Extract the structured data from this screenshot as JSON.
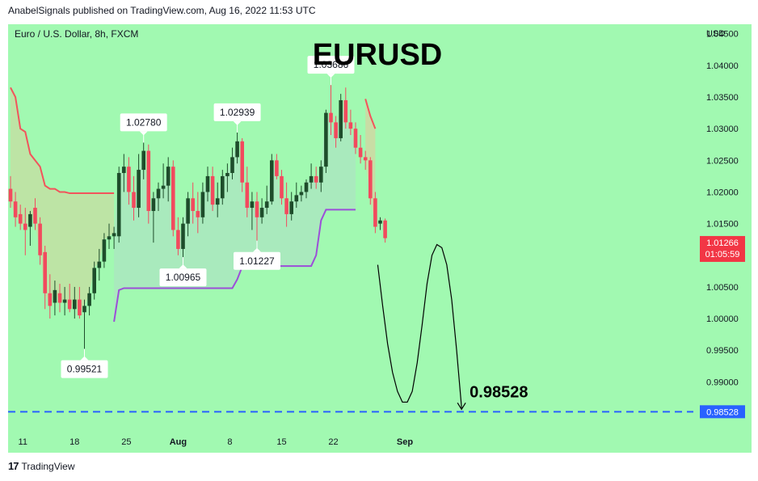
{
  "header": {
    "publish_line": "AnabelSignals published on TradingView.com, Aug 16, 2022 11:53 UTC"
  },
  "footer": {
    "brand": "TradingView",
    "logo_glyph": "17"
  },
  "colors": {
    "background": "#a1f9b1",
    "bull": "#1e4d2b",
    "bear": "#f24a5e",
    "resistance_line": "#f2545b",
    "support_line": "#9c4fd8",
    "target_line": "#2962ff",
    "last_price_label": "#f23645"
  },
  "chart_data": {
    "type": "candlestick",
    "title": "EURUSD",
    "symbol_label": "Euro / U.S. Dollar, 8h, FXCM",
    "currency": "USD",
    "ylim": [
      0.982,
      1.0465
    ],
    "y_ticks": [
      "1.04500",
      "1.04000",
      "1.03500",
      "1.03000",
      "1.02500",
      "1.02000",
      "1.01500",
      "1.01000",
      "1.00500",
      "1.00000",
      "0.99500",
      "0.99000"
    ],
    "x_ticks": [
      {
        "label": "11",
        "i": 2.5
      },
      {
        "label": "18",
        "i": 13
      },
      {
        "label": "25",
        "i": 23.5
      },
      {
        "label": "Aug",
        "i": 34
      },
      {
        "label": "8",
        "i": 44.5
      },
      {
        "label": "15",
        "i": 55
      },
      {
        "label": "22",
        "i": 65.5
      },
      {
        "label": "Sep",
        "i": 80
      }
    ],
    "candles": [
      {
        "o": 1.0205,
        "h": 1.0225,
        "l": 1.0175,
        "c": 1.0185
      },
      {
        "o": 1.0185,
        "h": 1.02,
        "l": 1.0145,
        "c": 1.016
      },
      {
        "o": 1.0165,
        "h": 1.018,
        "l": 1.014,
        "c": 1.015
      },
      {
        "o": 1.015,
        "h": 1.0175,
        "l": 1.01,
        "c": 1.014
      },
      {
        "o": 1.0145,
        "h": 1.017,
        "l": 1.0115,
        "c": 1.0165
      },
      {
        "o": 1.0175,
        "h": 1.019,
        "l": 1.014,
        "c": 1.015
      },
      {
        "o": 1.015,
        "h": 1.016,
        "l": 1.0085,
        "c": 1.01
      },
      {
        "o": 1.0105,
        "h": 1.0115,
        "l": 1.0015,
        "c": 1.004
      },
      {
        "o": 1.004,
        "h": 1.007,
        "l": 1.0,
        "c": 1.002
      },
      {
        "o": 1.0025,
        "h": 1.006,
        "l": 1.0005,
        "c": 1.0045
      },
      {
        "o": 1.004,
        "h": 1.0055,
        "l": 1.001,
        "c": 1.0025
      },
      {
        "o": 1.0025,
        "h": 1.005,
        "l": 1.0005,
        "c": 1.003
      },
      {
        "o": 1.003,
        "h": 1.0055,
        "l": 1.001,
        "c": 1.0015
      },
      {
        "o": 1.0015,
        "h": 1.005,
        "l": 1.0,
        "c": 1.003
      },
      {
        "o": 1.003,
        "h": 1.005,
        "l": 1.0,
        "c": 1.0005
      },
      {
        "o": 1.001,
        "h": 1.003,
        "l": 0.9952,
        "c": 1.002
      },
      {
        "o": 1.002,
        "h": 1.005,
        "l": 1.0005,
        "c": 1.004
      },
      {
        "o": 1.004,
        "h": 1.009,
        "l": 1.003,
        "c": 1.008
      },
      {
        "o": 1.008,
        "h": 1.011,
        "l": 1.006,
        "c": 1.009
      },
      {
        "o": 1.009,
        "h": 1.0135,
        "l": 1.008,
        "c": 1.0125
      },
      {
        "o": 1.0125,
        "h": 1.015,
        "l": 1.011,
        "c": 1.013
      },
      {
        "o": 1.013,
        "h": 1.0145,
        "l": 1.011,
        "c": 1.0135
      },
      {
        "o": 1.013,
        "h": 1.024,
        "l": 1.012,
        "c": 1.023
      },
      {
        "o": 1.023,
        "h": 1.026,
        "l": 1.02,
        "c": 1.024
      },
      {
        "o": 1.024,
        "h": 1.0255,
        "l": 1.018,
        "c": 1.02
      },
      {
        "o": 1.02,
        "h": 1.0225,
        "l": 1.0155,
        "c": 1.0175
      },
      {
        "o": 1.0175,
        "h": 1.026,
        "l": 1.016,
        "c": 1.0235
      },
      {
        "o": 1.0235,
        "h": 1.0278,
        "l": 1.022,
        "c": 1.0265
      },
      {
        "o": 1.0265,
        "h": 1.0275,
        "l": 1.015,
        "c": 1.017
      },
      {
        "o": 1.017,
        "h": 1.02,
        "l": 1.012,
        "c": 1.019
      },
      {
        "o": 1.019,
        "h": 1.0215,
        "l": 1.017,
        "c": 1.0205
      },
      {
        "o": 1.0205,
        "h": 1.0245,
        "l": 1.019,
        "c": 1.021
      },
      {
        "o": 1.021,
        "h": 1.0255,
        "l": 1.0185,
        "c": 1.024
      },
      {
        "o": 1.024,
        "h": 1.025,
        "l": 1.013,
        "c": 1.014
      },
      {
        "o": 1.014,
        "h": 1.016,
        "l": 1.01,
        "c": 1.011
      },
      {
        "o": 1.011,
        "h": 1.016,
        "l": 1.0097,
        "c": 1.015
      },
      {
        "o": 1.015,
        "h": 1.02,
        "l": 1.013,
        "c": 1.019
      },
      {
        "o": 1.019,
        "h": 1.0215,
        "l": 1.015,
        "c": 1.017
      },
      {
        "o": 1.017,
        "h": 1.02,
        "l": 1.0135,
        "c": 1.016
      },
      {
        "o": 1.016,
        "h": 1.0215,
        "l": 1.015,
        "c": 1.02
      },
      {
        "o": 1.02,
        "h": 1.024,
        "l": 1.0185,
        "c": 1.0225
      },
      {
        "o": 1.0225,
        "h": 1.024,
        "l": 1.017,
        "c": 1.018
      },
      {
        "o": 1.018,
        "h": 1.0215,
        "l": 1.016,
        "c": 1.019
      },
      {
        "o": 1.019,
        "h": 1.0235,
        "l": 1.018,
        "c": 1.0225
      },
      {
        "o": 1.0225,
        "h": 1.0245,
        "l": 1.02,
        "c": 1.023
      },
      {
        "o": 1.023,
        "h": 1.027,
        "l": 1.022,
        "c": 1.0255
      },
      {
        "o": 1.0255,
        "h": 1.0294,
        "l": 1.0245,
        "c": 1.028
      },
      {
        "o": 1.028,
        "h": 1.0285,
        "l": 1.02,
        "c": 1.0215
      },
      {
        "o": 1.0215,
        "h": 1.024,
        "l": 1.016,
        "c": 1.0175
      },
      {
        "o": 1.0175,
        "h": 1.02,
        "l": 1.014,
        "c": 1.0185
      },
      {
        "o": 1.0185,
        "h": 1.02,
        "l": 1.0123,
        "c": 1.016
      },
      {
        "o": 1.016,
        "h": 1.019,
        "l": 1.015,
        "c": 1.0175
      },
      {
        "o": 1.0175,
        "h": 1.021,
        "l": 1.0165,
        "c": 1.0185
      },
      {
        "o": 1.0185,
        "h": 1.026,
        "l": 1.018,
        "c": 1.025
      },
      {
        "o": 1.025,
        "h": 1.026,
        "l": 1.022,
        "c": 1.0225
      },
      {
        "o": 1.0225,
        "h": 1.0235,
        "l": 1.018,
        "c": 1.019
      },
      {
        "o": 1.019,
        "h": 1.0215,
        "l": 1.0145,
        "c": 1.0165
      },
      {
        "o": 1.0165,
        "h": 1.02,
        "l": 1.0155,
        "c": 1.0185
      },
      {
        "o": 1.0185,
        "h": 1.0215,
        "l": 1.0175,
        "c": 1.0195
      },
      {
        "o": 1.0195,
        "h": 1.021,
        "l": 1.0185,
        "c": 1.02
      },
      {
        "o": 1.02,
        "h": 1.022,
        "l": 1.019,
        "c": 1.0215
      },
      {
        "o": 1.0215,
        "h": 1.0245,
        "l": 1.0205,
        "c": 1.0225
      },
      {
        "o": 1.0225,
        "h": 1.024,
        "l": 1.0205,
        "c": 1.0215
      },
      {
        "o": 1.0215,
        "h": 1.025,
        "l": 1.02,
        "c": 1.024
      },
      {
        "o": 1.024,
        "h": 1.033,
        "l": 1.023,
        "c": 1.0325
      },
      {
        "o": 1.0325,
        "h": 1.0369,
        "l": 1.029,
        "c": 1.031
      },
      {
        "o": 1.031,
        "h": 1.032,
        "l": 1.027,
        "c": 1.0285
      },
      {
        "o": 1.0285,
        "h": 1.0355,
        "l": 1.028,
        "c": 1.0345
      },
      {
        "o": 1.0345,
        "h": 1.0365,
        "l": 1.03,
        "c": 1.031
      },
      {
        "o": 1.031,
        "h": 1.033,
        "l": 1.029,
        "c": 1.03
      },
      {
        "o": 1.03,
        "h": 1.031,
        "l": 1.026,
        "c": 1.027
      },
      {
        "o": 1.027,
        "h": 1.029,
        "l": 1.0245,
        "c": 1.0255
      },
      {
        "o": 1.0255,
        "h": 1.0265,
        "l": 1.0235,
        "c": 1.025
      },
      {
        "o": 1.025,
        "h": 1.0255,
        "l": 1.018,
        "c": 1.019
      },
      {
        "o": 1.019,
        "h": 1.02,
        "l": 1.0135,
        "c": 1.0145
      },
      {
        "o": 1.015,
        "h": 1.016,
        "l": 1.014,
        "c": 1.0155
      },
      {
        "o": 1.0155,
        "h": 1.0158,
        "l": 1.012,
        "c": 1.0127
      }
    ],
    "candle_span": 78,
    "resistance_line": [
      [
        0,
        1.0365
      ],
      [
        1,
        1.035
      ],
      [
        2,
        1.03
      ],
      [
        3,
        1.0295
      ],
      [
        4,
        1.026
      ],
      [
        5,
        1.025
      ],
      [
        6,
        1.024
      ],
      [
        7,
        1.021
      ],
      [
        8,
        1.0205
      ],
      [
        9,
        1.0205
      ],
      [
        10,
        1.02
      ],
      [
        11,
        1.02
      ],
      [
        12,
        1.0198
      ],
      [
        13,
        1.0198
      ],
      [
        14,
        1.0198
      ],
      [
        15,
        1.0198
      ],
      [
        16,
        1.0198
      ],
      [
        17,
        1.0198
      ],
      [
        18,
        1.0198
      ],
      [
        19,
        1.0198
      ],
      [
        20,
        1.0198
      ],
      [
        21,
        1.0198
      ],
      [
        72,
        1.0347
      ],
      [
        73,
        1.032
      ],
      [
        74,
        1.03
      ]
    ],
    "support_line": [
      [
        21,
        0.9995
      ],
      [
        22,
        1.0045
      ],
      [
        23,
        1.0048
      ],
      [
        24,
        1.0048
      ],
      [
        25,
        1.0048
      ],
      [
        26,
        1.0048
      ],
      [
        27,
        1.0048
      ],
      [
        28,
        1.0048
      ],
      [
        29,
        1.0048
      ],
      [
        30,
        1.0048
      ],
      [
        31,
        1.0048
      ],
      [
        32,
        1.0048
      ],
      [
        33,
        1.0048
      ],
      [
        34,
        1.0048
      ],
      [
        35,
        1.0048
      ],
      [
        36,
        1.0048
      ],
      [
        37,
        1.0048
      ],
      [
        38,
        1.0048
      ],
      [
        39,
        1.0048
      ],
      [
        40,
        1.0048
      ],
      [
        41,
        1.0048
      ],
      [
        42,
        1.0048
      ],
      [
        43,
        1.0048
      ],
      [
        44,
        1.0048
      ],
      [
        45,
        1.0048
      ],
      [
        46,
        1.0062
      ],
      [
        47,
        1.0082
      ],
      [
        48,
        1.0083
      ],
      [
        49,
        1.0083
      ],
      [
        50,
        1.0083
      ],
      [
        51,
        1.0083
      ],
      [
        52,
        1.0083
      ],
      [
        53,
        1.0083
      ],
      [
        54,
        1.0083
      ],
      [
        55,
        1.0083
      ],
      [
        56,
        1.0083
      ],
      [
        57,
        1.0083
      ],
      [
        58,
        1.0083
      ],
      [
        59,
        1.0083
      ],
      [
        60,
        1.0083
      ],
      [
        61,
        1.0083
      ],
      [
        62,
        1.01
      ],
      [
        63,
        1.0155
      ],
      [
        64,
        1.0172
      ],
      [
        65,
        1.0172
      ],
      [
        66,
        1.0172
      ],
      [
        67,
        1.0172
      ],
      [
        68,
        1.0172
      ],
      [
        69,
        1.0172
      ],
      [
        70,
        1.0172
      ]
    ],
    "projection": [
      [
        74.5,
        1.0085
      ],
      [
        75.5,
        1.002
      ],
      [
        76.5,
        0.996
      ],
      [
        77.5,
        0.9915
      ],
      [
        78.5,
        0.9885
      ],
      [
        79.5,
        0.9868
      ],
      [
        80.5,
        0.9868
      ],
      [
        81.5,
        0.9885
      ],
      [
        82.5,
        0.993
      ],
      [
        83.5,
        0.999
      ],
      [
        84.5,
        1.0055
      ],
      [
        85.5,
        1.01
      ],
      [
        86.5,
        1.0117
      ],
      [
        87.5,
        1.0112
      ],
      [
        88.5,
        1.0085
      ],
      [
        89.5,
        1.003
      ],
      [
        90.5,
        0.995
      ],
      [
        91.5,
        0.986
      ]
    ],
    "annotations": [
      {
        "label": "0.99521",
        "i": 15,
        "value": 0.9952,
        "position": "below"
      },
      {
        "label": "1.02780",
        "i": 27,
        "value": 1.0278,
        "position": "above"
      },
      {
        "label": "1.00965",
        "i": 35,
        "value": 1.0097,
        "position": "below"
      },
      {
        "label": "1.02939",
        "i": 46,
        "value": 1.0294,
        "position": "above"
      },
      {
        "label": "1.01227",
        "i": 50,
        "value": 1.0123,
        "position": "below"
      },
      {
        "label": "1.03686",
        "i": 65,
        "value": 1.0369,
        "position": "above"
      }
    ],
    "target": {
      "value": 0.98528,
      "label": "0.98528"
    },
    "last_price": {
      "value": 1.01266,
      "label": "1.01266",
      "countdown": "01:05:59"
    }
  }
}
